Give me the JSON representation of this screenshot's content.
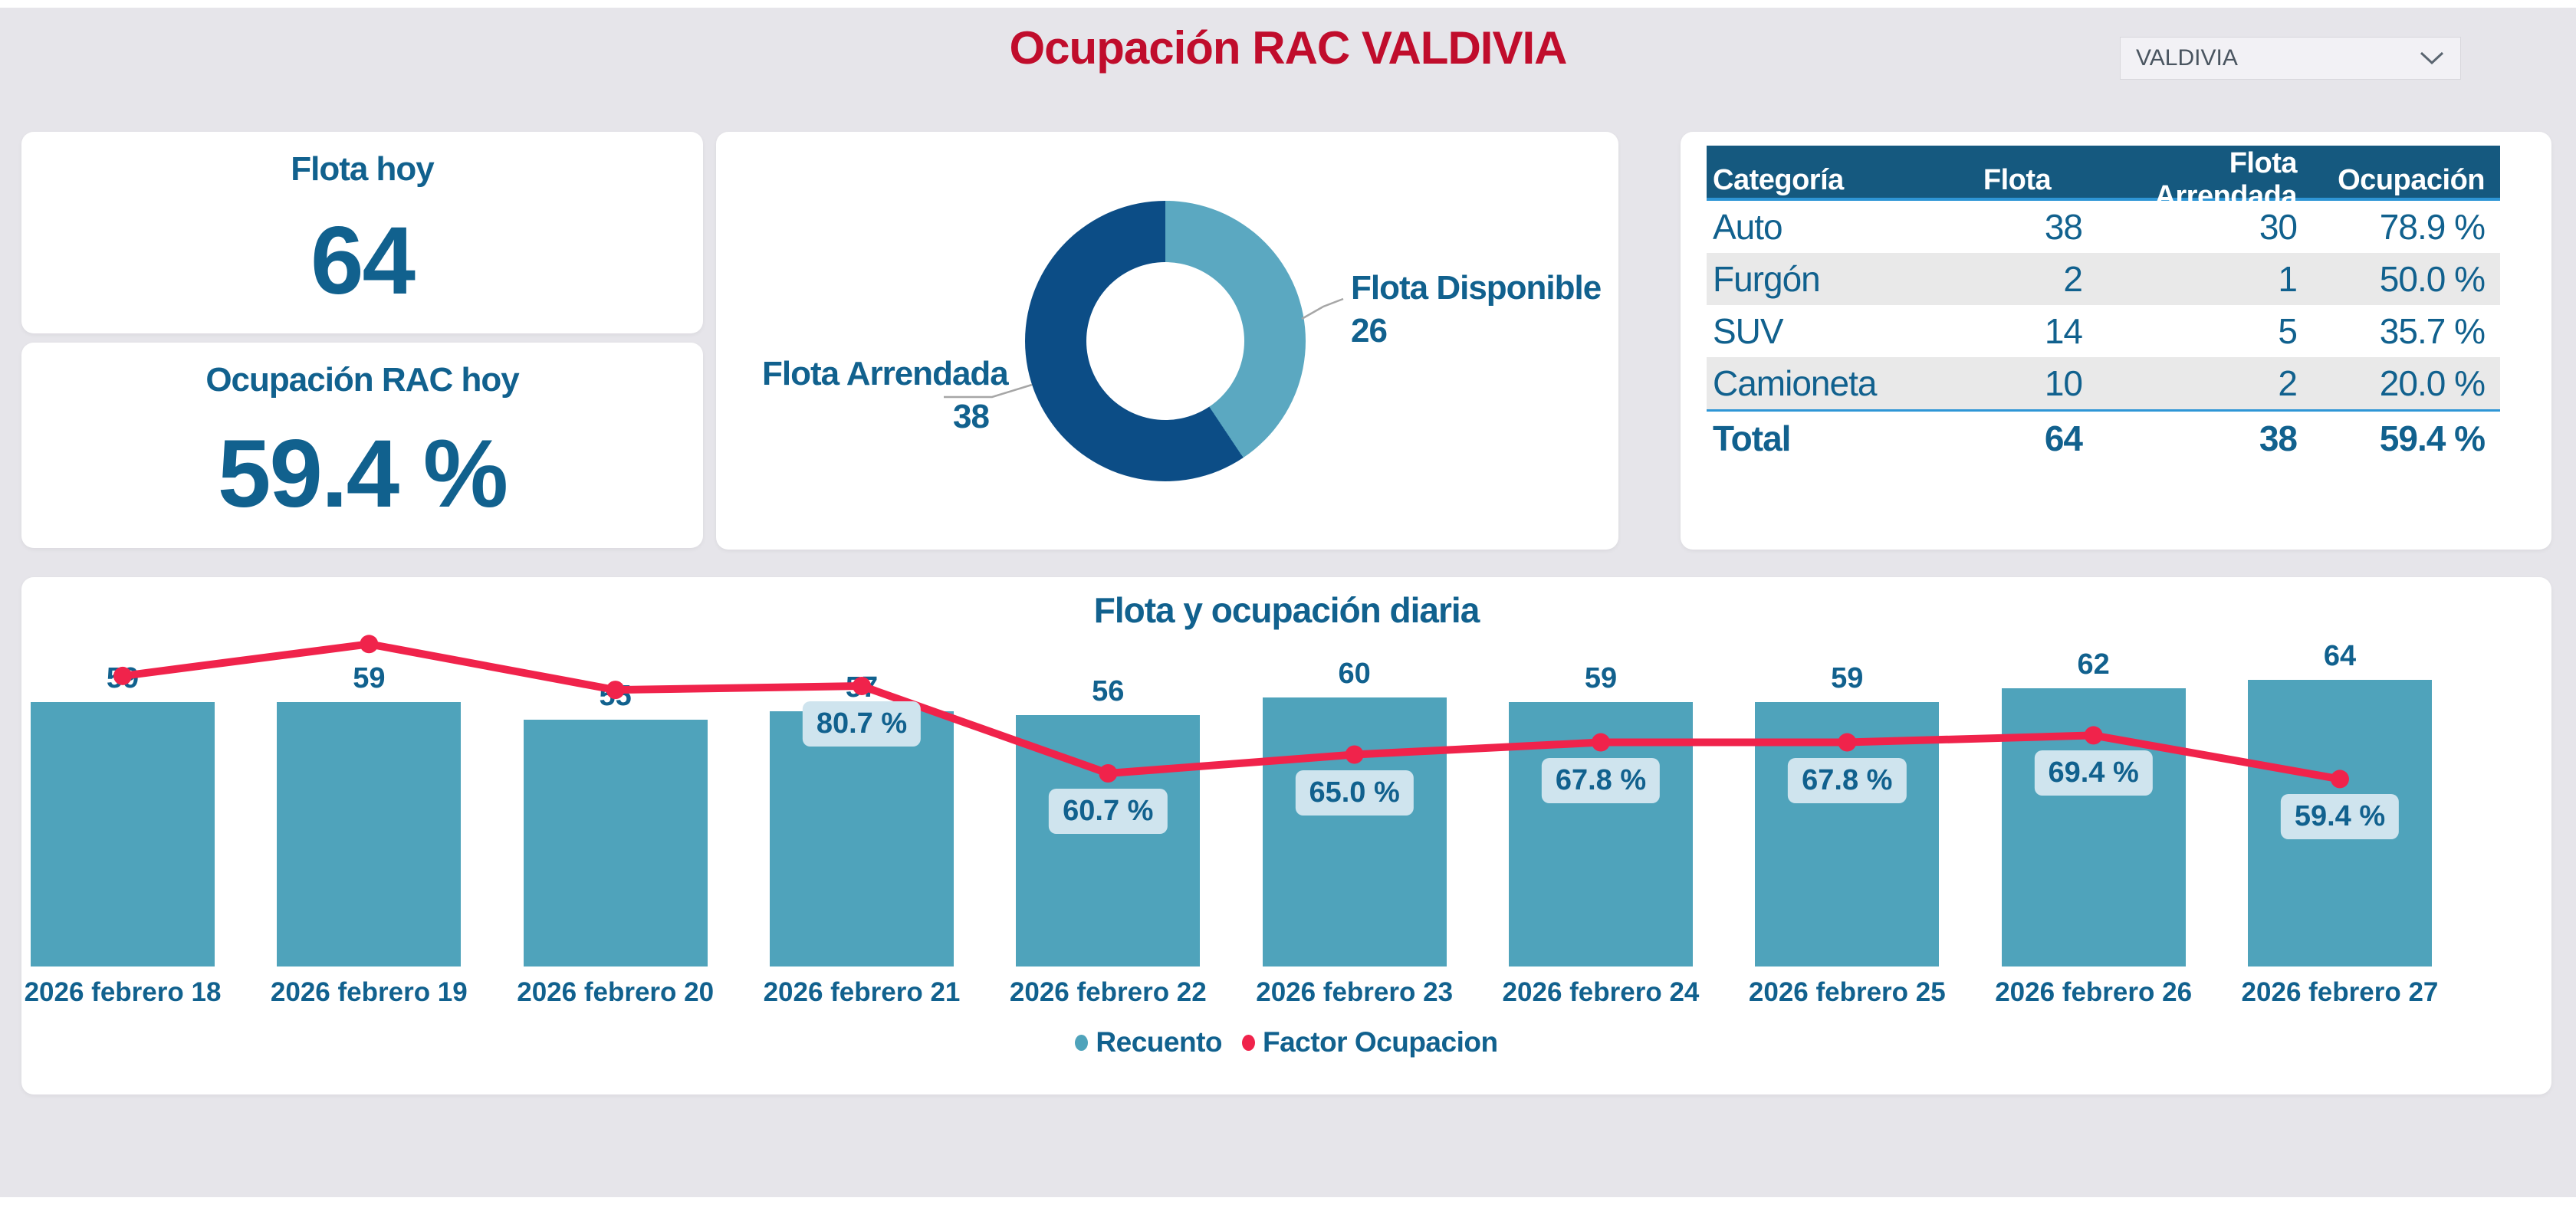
{
  "page": {
    "title": "Ocupación RAC VALDIVIA"
  },
  "filter": {
    "value": "VALDIVIA"
  },
  "kpis": [
    {
      "label": "Flota hoy",
      "value": "64"
    },
    {
      "label": "Ocupación RAC hoy",
      "value": "59.4 %"
    }
  ],
  "donut": {
    "left_label": {
      "label": "Flota Arrendada",
      "value": "38"
    },
    "right_label": {
      "label": "Flota Disponible",
      "value": "26"
    }
  },
  "table": {
    "columns": [
      "Categoría",
      "Flota",
      "Flota Arrendada",
      "Ocupación"
    ],
    "sorted_column": "Ocupación",
    "sort_direction": "desc",
    "rows": [
      [
        "Auto",
        "38",
        "30",
        "78.9 %"
      ],
      [
        "Furgón",
        "2",
        "1",
        "50.0 %"
      ],
      [
        "SUV",
        "14",
        "5",
        "35.7 %"
      ],
      [
        "Camioneta",
        "10",
        "2",
        "20.0 %"
      ]
    ],
    "total": [
      "Total",
      "64",
      "38",
      "59.4 %"
    ]
  },
  "chart_data": [
    {
      "type": "pie",
      "title": "",
      "labels": [
        "Flota Arrendada",
        "Flota Disponible"
      ],
      "values": [
        38,
        26
      ],
      "colors": [
        "#0c4d86",
        "#5ba8c1"
      ],
      "donut_hole": 0.56
    },
    {
      "type": "bar",
      "title": "Flota y ocupación diaria",
      "categories": [
        "2026 febrero 18",
        "2026 febrero 19",
        "2026 febrero 20",
        "2026 febrero 21",
        "2026 febrero 22",
        "2026 febrero 23",
        "2026 febrero 24",
        "2026 febrero 25",
        "2026 febrero 26",
        "2026 febrero 27"
      ],
      "series": [
        {
          "name": "Recuento",
          "type": "bar",
          "color": "#4fa3bb",
          "values": [
            59,
            59,
            55,
            57,
            56,
            60,
            59,
            59,
            62,
            64
          ]
        },
        {
          "name": "Factor Ocupacion",
          "type": "line",
          "color": "#f0234b",
          "values_pct": [
            83.0,
            90.3,
            79.8,
            80.7,
            60.7,
            65.0,
            67.8,
            67.8,
            69.4,
            59.4
          ],
          "labels": [
            "",
            "",
            "",
            "80.7 %",
            "60.7 %",
            "65.0 %",
            "67.8 %",
            "67.8 %",
            "69.4 %",
            "59.4 %"
          ]
        }
      ],
      "ylim": [
        0,
        70
      ],
      "legend_position": "bottom",
      "grid": false
    }
  ],
  "legend": [
    {
      "label": "Recuento",
      "color": "#4fa3bb"
    },
    {
      "label": "Factor Ocupacion",
      "color": "#f0234b"
    }
  ],
  "colors": {
    "background": "#e6e5ea",
    "card": "#ffffff",
    "teal_text": "#11618e",
    "title_red": "#c00d2c",
    "bar": "#4fa3bb",
    "donut_dark": "#0c4d86",
    "donut_light": "#5ba8c1",
    "line_red": "#f0234b",
    "pill_bg": "#cfe4ee",
    "table_header_bg": "#15597f",
    "table_accent_line": "#2e96d6",
    "alt_row_bg": "#e9e9e9"
  }
}
